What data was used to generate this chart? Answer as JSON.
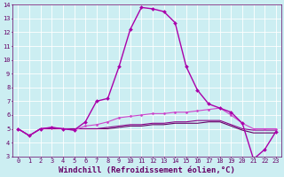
{
  "xlabel": "Windchill (Refroidissement éolien,°C)",
  "bg_color": "#cceef2",
  "grid_color": "#ffffff",
  "xlim": [
    -0.5,
    23.5
  ],
  "ylim": [
    3,
    14
  ],
  "xticks": [
    0,
    1,
    2,
    3,
    4,
    5,
    6,
    7,
    8,
    9,
    10,
    11,
    12,
    13,
    14,
    15,
    16,
    17,
    18,
    19,
    20,
    21,
    22,
    23
  ],
  "yticks": [
    3,
    4,
    5,
    6,
    7,
    8,
    9,
    10,
    11,
    12,
    13,
    14
  ],
  "series": [
    {
      "y": [
        5.0,
        4.5,
        5.0,
        5.1,
        5.0,
        4.9,
        5.5,
        7.0,
        7.2,
        9.5,
        12.2,
        13.8,
        13.7,
        13.5,
        12.7,
        9.5,
        7.8,
        6.8,
        6.5,
        6.2,
        5.4,
        2.8,
        3.5,
        4.8
      ],
      "color": "#aa00aa",
      "lw": 1.0,
      "marker": "D",
      "ms": 2.0,
      "zorder": 5
    },
    {
      "y": [
        5.0,
        4.5,
        5.0,
        5.1,
        5.0,
        4.9,
        5.2,
        5.3,
        5.5,
        5.8,
        5.9,
        6.0,
        6.1,
        6.1,
        6.2,
        6.2,
        6.3,
        6.4,
        6.5,
        6.0,
        5.4,
        5.0,
        5.0,
        5.0
      ],
      "color": "#cc44cc",
      "lw": 0.8,
      "marker": "D",
      "ms": 1.5,
      "zorder": 4
    },
    {
      "y": [
        5.0,
        4.5,
        5.0,
        5.0,
        5.0,
        5.0,
        5.0,
        5.0,
        5.1,
        5.2,
        5.3,
        5.3,
        5.4,
        5.4,
        5.5,
        5.5,
        5.6,
        5.6,
        5.6,
        5.3,
        5.0,
        4.9,
        4.9,
        4.9
      ],
      "color": "#880088",
      "lw": 0.8,
      "marker": null,
      "ms": 0,
      "zorder": 3
    },
    {
      "y": [
        5.0,
        4.5,
        5.0,
        5.0,
        5.0,
        5.0,
        5.0,
        5.0,
        5.0,
        5.1,
        5.2,
        5.2,
        5.3,
        5.3,
        5.4,
        5.4,
        5.4,
        5.5,
        5.5,
        5.2,
        4.9,
        4.7,
        4.7,
        4.7
      ],
      "color": "#660066",
      "lw": 0.8,
      "marker": null,
      "ms": 0,
      "zorder": 2
    }
  ],
  "xlabel_color": "#660066",
  "xlabel_fontsize": 6.5,
  "tick_color": "#660066",
  "tick_fontsize": 5.0,
  "spine_color": "#660066",
  "axis_bg": "#cceef2"
}
